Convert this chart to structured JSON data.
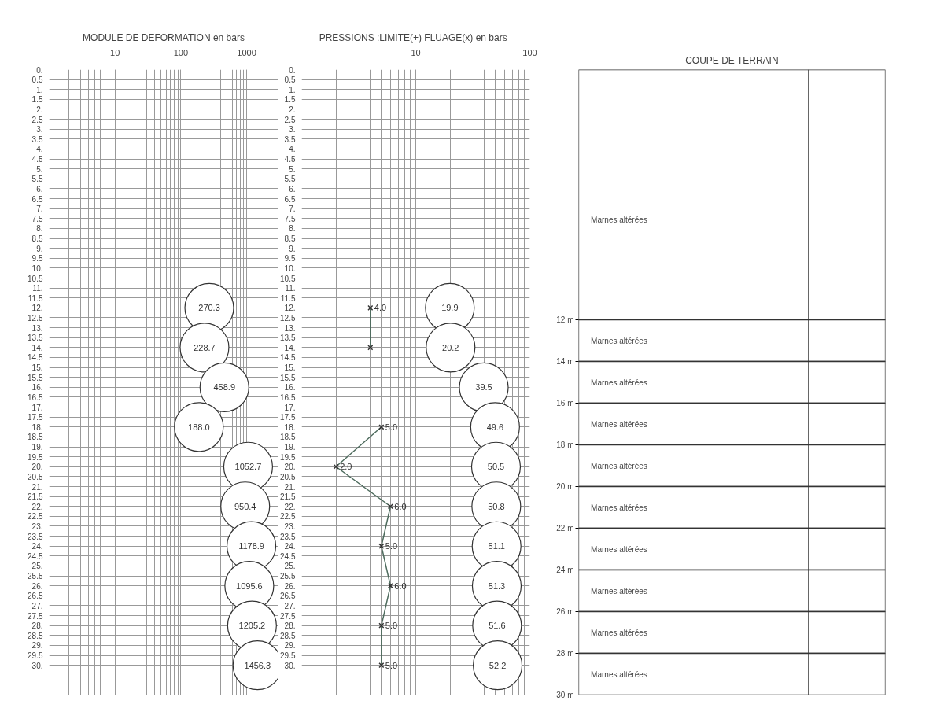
{
  "chart_data": [
    {
      "type": "scatter",
      "orientation": "horizontal",
      "title": "MODULE DE DEFORMATION en bars",
      "log": "x",
      "xlim": [
        1,
        3000
      ],
      "xticks": [
        10,
        100,
        1000
      ],
      "ylim": [
        31.5,
        0
      ],
      "grid": true,
      "marker": "circle",
      "yticks": [
        {
          "value": 0,
          "label": "0."
        },
        {
          "value": 0.5,
          "label": "0.5"
        },
        {
          "value": 1,
          "label": "1."
        },
        {
          "value": 1.5,
          "label": "1.5"
        },
        {
          "value": 2,
          "label": "2."
        },
        {
          "value": 2.5,
          "label": "2.5"
        },
        {
          "value": 3,
          "label": "3."
        },
        {
          "value": 3.5,
          "label": "3.5"
        },
        {
          "value": 4,
          "label": "4."
        },
        {
          "value": 4.5,
          "label": "4.5"
        },
        {
          "value": 5,
          "label": "5."
        },
        {
          "value": 5.5,
          "label": "5.5"
        },
        {
          "value": 6,
          "label": "6."
        },
        {
          "value": 6.5,
          "label": "6.5"
        },
        {
          "value": 7,
          "label": "7."
        },
        {
          "value": 7.5,
          "label": "7.5"
        },
        {
          "value": 8,
          "label": "8."
        },
        {
          "value": 8.5,
          "label": "8.5"
        },
        {
          "value": 9,
          "label": "9."
        },
        {
          "value": 9.5,
          "label": "9.5"
        },
        {
          "value": 10,
          "label": "10."
        },
        {
          "value": 10.5,
          "label": "10.5"
        },
        {
          "value": 11,
          "label": "11."
        },
        {
          "value": 11.5,
          "label": "11.5"
        },
        {
          "value": 12,
          "label": "12."
        },
        {
          "value": 12.5,
          "label": "12.5"
        },
        {
          "value": 13,
          "label": "13."
        },
        {
          "value": 13.5,
          "label": "13.5"
        },
        {
          "value": 14,
          "label": "14."
        },
        {
          "value": 14.5,
          "label": "14.5"
        },
        {
          "value": 15,
          "label": "15."
        },
        {
          "value": 15.5,
          "label": "15.5"
        },
        {
          "value": 16,
          "label": "16."
        },
        {
          "value": 16.5,
          "label": "16.5"
        },
        {
          "value": 17,
          "label": "17."
        },
        {
          "value": 17.5,
          "label": "17.5"
        },
        {
          "value": 18,
          "label": "18."
        },
        {
          "value": 18.5,
          "label": "18.5"
        },
        {
          "value": 19,
          "label": "19."
        },
        {
          "value": 19.5,
          "label": "19.5"
        },
        {
          "value": 20,
          "label": "20."
        },
        {
          "value": 20.5,
          "label": "20.5"
        },
        {
          "value": 21,
          "label": "21."
        },
        {
          "value": 21.5,
          "label": "21.5"
        },
        {
          "value": 22,
          "label": "22."
        },
        {
          "value": 22.5,
          "label": "22.5"
        },
        {
          "value": 23,
          "label": "23."
        },
        {
          "value": 23.5,
          "label": "23.5"
        },
        {
          "value": 24,
          "label": "24."
        },
        {
          "value": 24.5,
          "label": "24.5"
        },
        {
          "value": 25,
          "label": "25."
        },
        {
          "value": 25.5,
          "label": "25.5"
        },
        {
          "value": 26,
          "label": "26."
        },
        {
          "value": 26.5,
          "label": "26.5"
        },
        {
          "value": 27,
          "label": "27."
        },
        {
          "value": 27.5,
          "label": "27.5"
        },
        {
          "value": 28,
          "label": "28."
        },
        {
          "value": 28.5,
          "label": "28.5"
        },
        {
          "value": 29,
          "label": "29."
        },
        {
          "value": 29.5,
          "label": "29.5"
        },
        {
          "value": 30,
          "label": "30."
        }
      ],
      "series": [
        {
          "color": "#333333",
          "x": [
            12,
            14,
            16,
            18,
            20,
            22,
            24,
            26,
            28,
            30
          ],
          "values": [
            270.3,
            228.7,
            458.9,
            188.0,
            1052.7,
            950.4,
            1178.9,
            1095.6,
            1205.2,
            1456.3
          ],
          "value_labels": [
            "270.3",
            "228.7",
            "458.9",
            "188.0",
            "1052.7",
            "950.4",
            "1178.9",
            "1095.6",
            "1205.2",
            "1456.3"
          ]
        }
      ]
    },
    {
      "type": "scatter",
      "orientation": "horizontal",
      "title": "PRESSIONS :LIMITE(+)   FLUAGE(x) en bars",
      "log": "x",
      "xlim": [
        1,
        100
      ],
      "xticks": [
        10,
        100
      ],
      "ylim": [
        31.5,
        0
      ],
      "grid": true,
      "yticks": [
        {
          "value": 0,
          "label": "0."
        },
        {
          "value": 0.5,
          "label": "0.5"
        },
        {
          "value": 1,
          "label": "1."
        },
        {
          "value": 1.5,
          "label": "1.5"
        },
        {
          "value": 2,
          "label": "2."
        },
        {
          "value": 2.5,
          "label": "2.5"
        },
        {
          "value": 3,
          "label": "3."
        },
        {
          "value": 3.5,
          "label": "3.5"
        },
        {
          "value": 4,
          "label": "4."
        },
        {
          "value": 4.5,
          "label": "4.5"
        },
        {
          "value": 5,
          "label": "5."
        },
        {
          "value": 5.5,
          "label": "5.5"
        },
        {
          "value": 6,
          "label": "6."
        },
        {
          "value": 6.5,
          "label": "6.5"
        },
        {
          "value": 7,
          "label": "7."
        },
        {
          "value": 7.5,
          "label": "7.5"
        },
        {
          "value": 8,
          "label": "8."
        },
        {
          "value": 8.5,
          "label": "8.5"
        },
        {
          "value": 9,
          "label": "9."
        },
        {
          "value": 9.5,
          "label": "9.5"
        },
        {
          "value": 10,
          "label": "10."
        },
        {
          "value": 10.5,
          "label": "10.5"
        },
        {
          "value": 11,
          "label": "11."
        },
        {
          "value": 11.5,
          "label": "11.5"
        },
        {
          "value": 12,
          "label": "12."
        },
        {
          "value": 12.5,
          "label": "12.5"
        },
        {
          "value": 13,
          "label": "13."
        },
        {
          "value": 13.5,
          "label": "13.5"
        },
        {
          "value": 14,
          "label": "14."
        },
        {
          "value": 14.5,
          "label": "14.5"
        },
        {
          "value": 15,
          "label": "15."
        },
        {
          "value": 15.5,
          "label": "15.5"
        },
        {
          "value": 16,
          "label": "16."
        },
        {
          "value": 16.5,
          "label": "16.5"
        },
        {
          "value": 17,
          "label": "17."
        },
        {
          "value": 17.5,
          "label": "17.5"
        },
        {
          "value": 18,
          "label": "18."
        },
        {
          "value": 18.5,
          "label": "18.5"
        },
        {
          "value": 19,
          "label": "19."
        },
        {
          "value": 19.5,
          "label": "19.5"
        },
        {
          "value": 20,
          "label": "20."
        },
        {
          "value": 20.5,
          "label": "20.5"
        },
        {
          "value": 21,
          "label": "21."
        },
        {
          "value": 21.5,
          "label": "21.5"
        },
        {
          "value": 22,
          "label": "22."
        },
        {
          "value": 22.5,
          "label": "22.5"
        },
        {
          "value": 23,
          "label": "23."
        },
        {
          "value": 23.5,
          "label": "23.5"
        },
        {
          "value": 24,
          "label": "24."
        },
        {
          "value": 24.5,
          "label": "24.5"
        },
        {
          "value": 25,
          "label": "25."
        },
        {
          "value": 25.5,
          "label": "25.5"
        },
        {
          "value": 26,
          "label": "26."
        },
        {
          "value": 26.5,
          "label": "26.5"
        },
        {
          "value": 27,
          "label": "27."
        },
        {
          "value": 27.5,
          "label": "27.5"
        },
        {
          "value": 28,
          "label": "28."
        },
        {
          "value": 28.5,
          "label": "28.5"
        },
        {
          "value": 29,
          "label": "29."
        },
        {
          "value": 29.5,
          "label": "29.5"
        },
        {
          "value": 30,
          "label": "30."
        }
      ],
      "series": [
        {
          "marker": "circle",
          "color": "#333333",
          "x": [
            12,
            14,
            16,
            18,
            20,
            22,
            24,
            26,
            28,
            30
          ],
          "values": [
            19.9,
            20.2,
            39.5,
            49.6,
            50.5,
            50.8,
            51.1,
            51.3,
            51.6,
            52.2
          ],
          "value_labels": [
            "19.9",
            "20.2",
            "39.5",
            "49.6",
            "50.5",
            "50.8",
            "51.1",
            "51.3",
            "51.6",
            "52.2"
          ]
        },
        {
          "type": "line",
          "marker": "cross",
          "color": "#4d6b5d",
          "x": [
            12,
            14,
            16,
            18,
            20,
            22,
            24,
            26,
            28,
            30
          ],
          "values": [
            4.0,
            4.0,
            null,
            5.0,
            2.0,
            6.0,
            5.0,
            6.0,
            5.0,
            5.0
          ],
          "value_labels": [
            "4.0",
            null,
            null,
            "5.0",
            "2.0",
            "6.0",
            "5.0",
            "6.0",
            "5.0",
            "5.0"
          ]
        }
      ]
    },
    {
      "type": "bar",
      "stacked": true,
      "title": "COUPE DE TERRAIN",
      "categories": [
        null
      ],
      "ylim": [
        30,
        0
      ],
      "yticks": [
        {
          "value": 12,
          "label": "12 m"
        },
        {
          "value": 14,
          "label": "14 m"
        },
        {
          "value": 16,
          "label": "16 m"
        },
        {
          "value": 18,
          "label": "18 m"
        },
        {
          "value": 20,
          "label": "20 m"
        },
        {
          "value": 22,
          "label": "22 m"
        },
        {
          "value": 24,
          "label": "24 m"
        },
        {
          "value": 26,
          "label": "26 m"
        },
        {
          "value": 28,
          "label": "28 m"
        },
        {
          "value": 30,
          "label": "30 m"
        }
      ],
      "series": [
        {
          "name": "Marnes altérées",
          "color": "#ffffff",
          "values": [
            12
          ]
        },
        {
          "name": "Marnes altérées",
          "color": "#ffffff",
          "values": [
            2
          ]
        },
        {
          "name": "Marnes altérées",
          "color": "#ffffff",
          "values": [
            2
          ]
        },
        {
          "name": "Marnes altérées",
          "color": "#ffffff",
          "values": [
            2
          ]
        },
        {
          "name": "Marnes altérées",
          "color": "#ffffff",
          "values": [
            2
          ]
        },
        {
          "name": "Marnes altérées",
          "color": "#ffffff",
          "values": [
            2
          ]
        },
        {
          "name": "Marnes altérées",
          "color": "#ffffff",
          "values": [
            2
          ]
        },
        {
          "name": "Marnes altérées",
          "color": "#ffffff",
          "values": [
            2
          ]
        },
        {
          "name": "Marnes altérées",
          "color": "#ffffff",
          "values": [
            2
          ]
        },
        {
          "name": "Marnes altérées",
          "color": "#ffffff",
          "values": [
            2
          ]
        }
      ]
    }
  ]
}
